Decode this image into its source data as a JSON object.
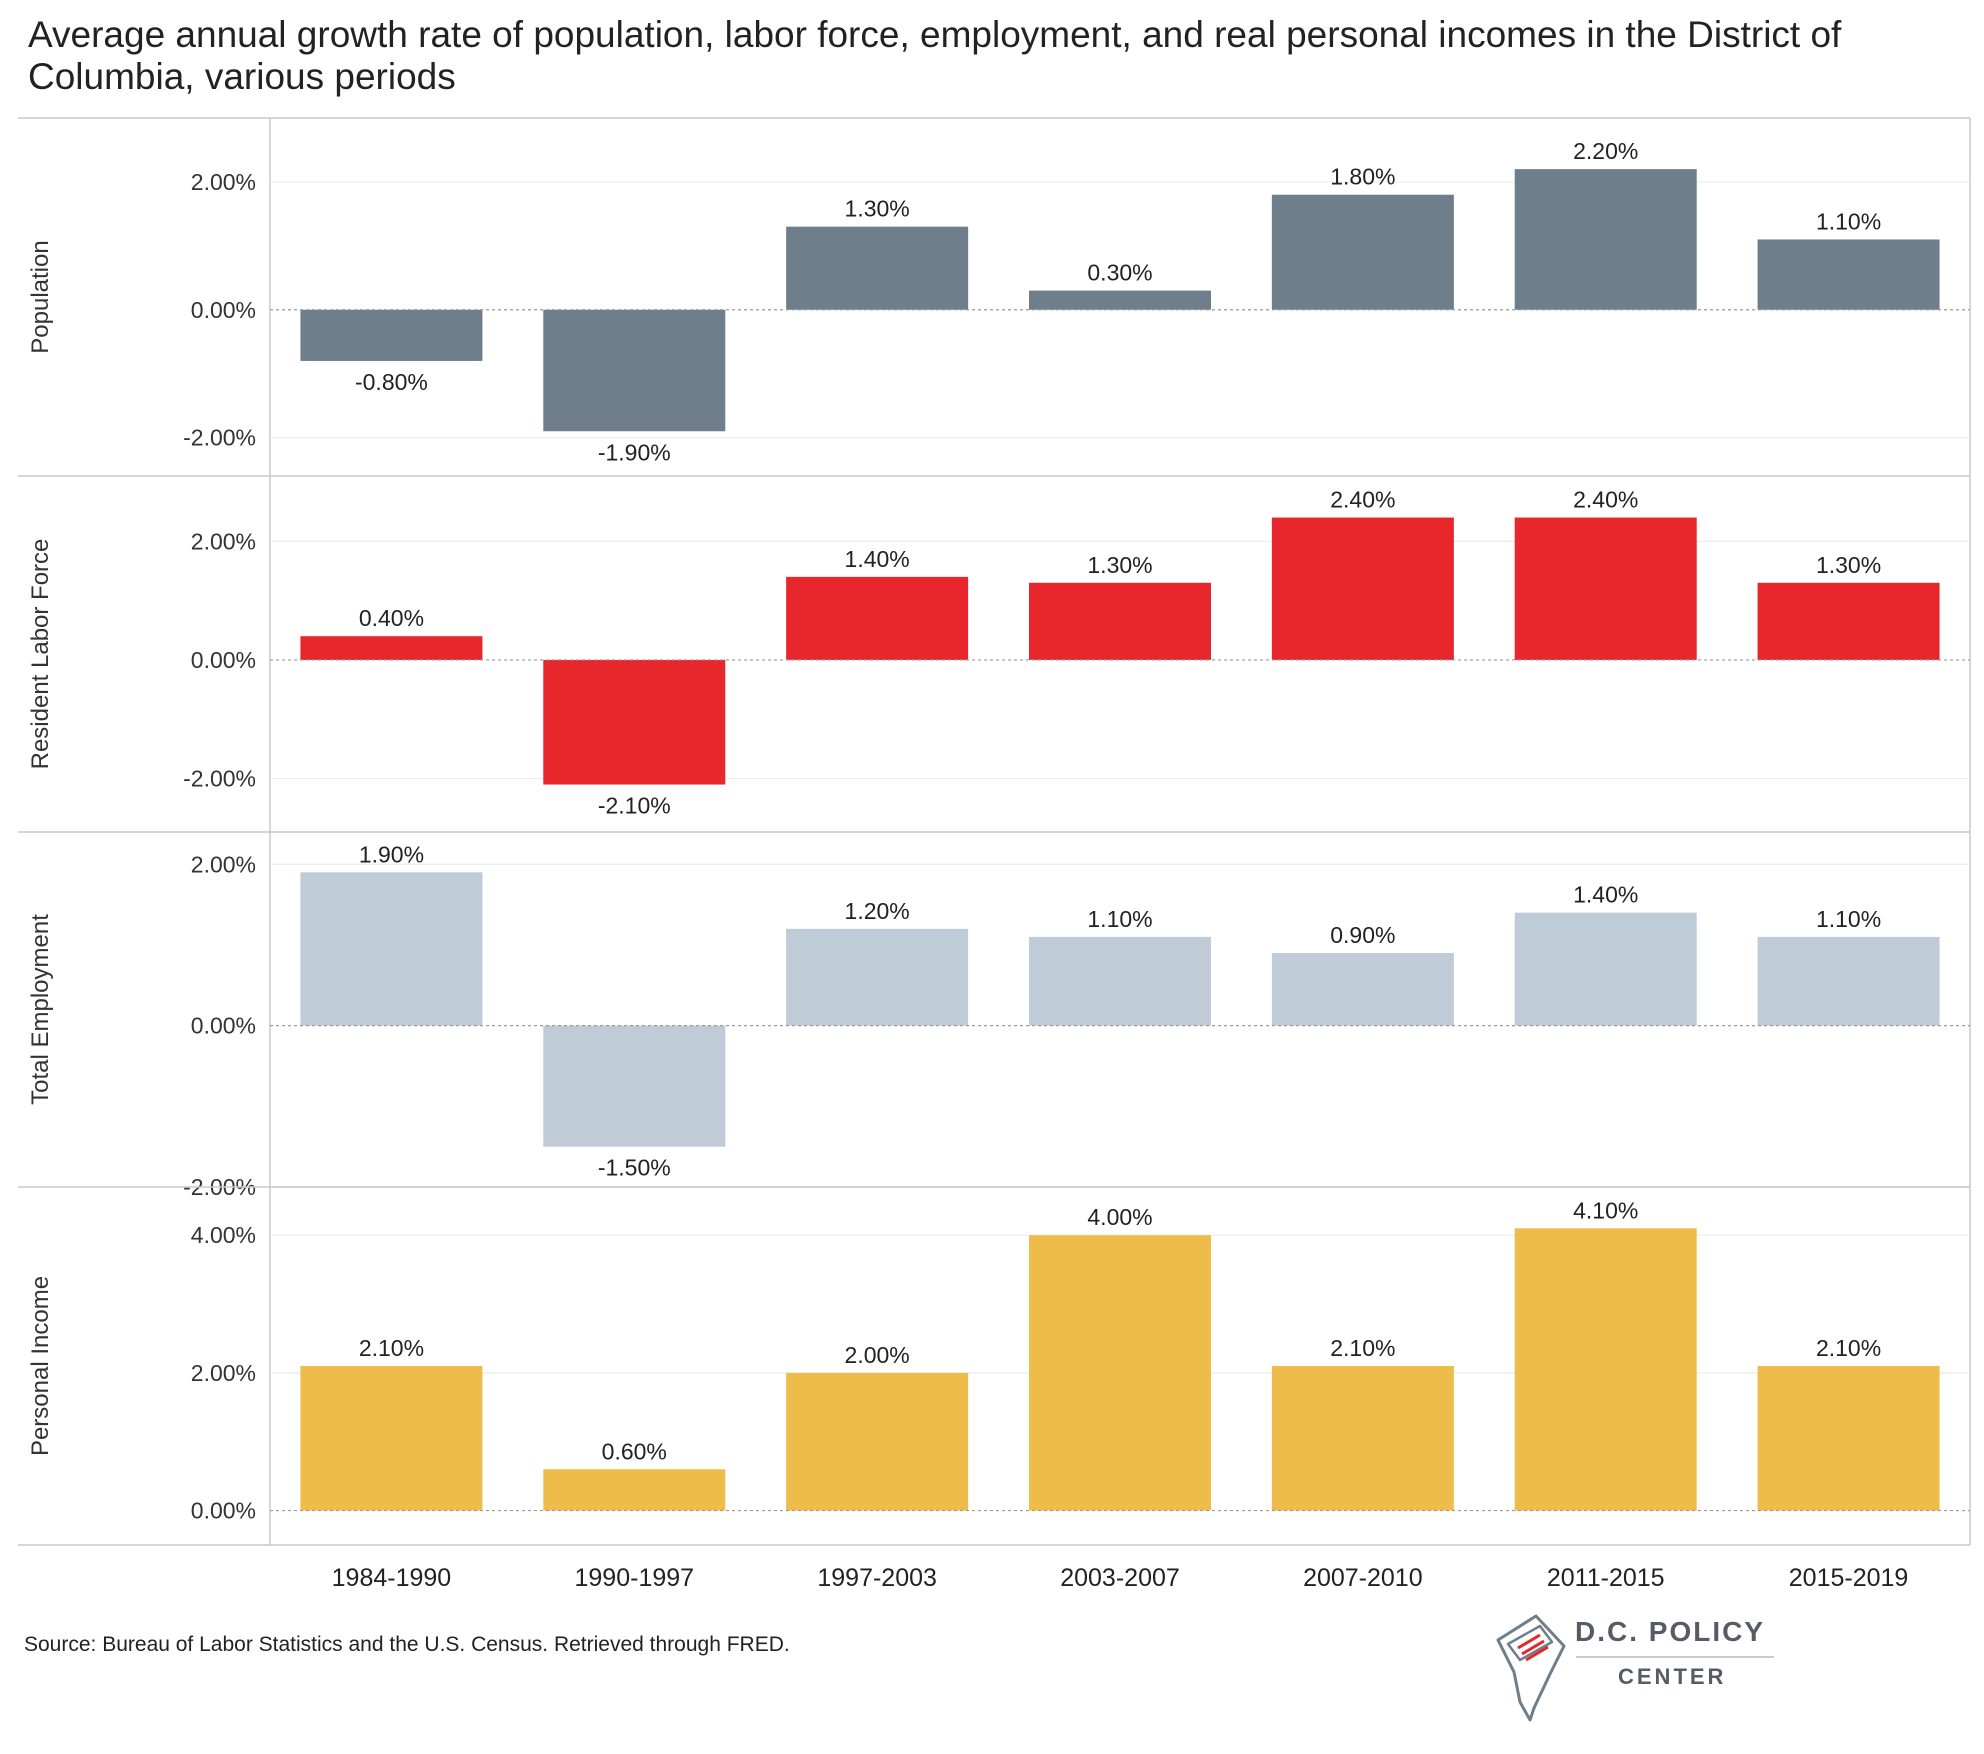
{
  "title": "Average annual growth rate of population, labor force, employment, and real personal incomes in the District of Columbia, various periods",
  "source": "Source: Bureau of Labor Statistics and the U.S. Census. Retrieved through FRED.",
  "logo": {
    "line1": "D.C. POLICY",
    "line2": "CENTER"
  },
  "chart_data": {
    "type": "bar",
    "categories": [
      "1984-1990",
      "1990-1997",
      "1997-2003",
      "2003-2007",
      "2007-2010",
      "2011-2015",
      "2015-2019"
    ],
    "grid": true,
    "panels": [
      {
        "name": "Population",
        "color": "#6e7e8b",
        "values": [
          -0.8,
          -1.9,
          1.3,
          0.3,
          1.8,
          2.2,
          1.1
        ],
        "labels": [
          "-0.80%",
          "-1.90%",
          "1.30%",
          "0.30%",
          "1.80%",
          "2.20%",
          "1.10%"
        ],
        "ylim": [
          -2.6,
          3.0
        ],
        "ticks": [
          -2,
          0,
          2
        ],
        "tick_labels": [
          "-2.00%",
          "0.00%",
          "2.00%"
        ]
      },
      {
        "name": "Resident Labor Force",
        "color": "#e8272d",
        "values": [
          0.4,
          -2.1,
          1.4,
          1.3,
          2.4,
          2.4,
          1.3
        ],
        "labels": [
          "0.40%",
          "-2.10%",
          "1.40%",
          "1.30%",
          "2.40%",
          "2.40%",
          "1.30%"
        ],
        "ylim": [
          -2.9,
          3.1
        ],
        "ticks": [
          -2,
          0,
          2
        ],
        "tick_labels": [
          "-2.00%",
          "0.00%",
          "2.00%"
        ]
      },
      {
        "name": "Total Employment",
        "color": "#bfcbd7",
        "values": [
          1.9,
          -1.5,
          1.2,
          1.1,
          0.9,
          1.4,
          1.1
        ],
        "labels": [
          "1.90%",
          "-1.50%",
          "1.20%",
          "1.10%",
          "0.90%",
          "1.40%",
          "1.10%"
        ],
        "ylim": [
          -2.0,
          2.4
        ],
        "ticks": [
          -2,
          0,
          2
        ],
        "tick_labels": [
          "-2.00%",
          "0.00%",
          "2.00%"
        ]
      },
      {
        "name": "Personal Income",
        "color": "#eebc4b",
        "values": [
          2.1,
          0.6,
          2.0,
          4.0,
          2.1,
          4.1,
          2.1
        ],
        "labels": [
          "2.10%",
          "0.60%",
          "2.00%",
          "4.00%",
          "2.10%",
          "4.10%",
          "2.10%"
        ],
        "ylim": [
          -0.5,
          4.7
        ],
        "ticks": [
          0,
          2,
          4
        ],
        "tick_labels": [
          "0.00%",
          "2.00%",
          "4.00%"
        ]
      }
    ]
  }
}
